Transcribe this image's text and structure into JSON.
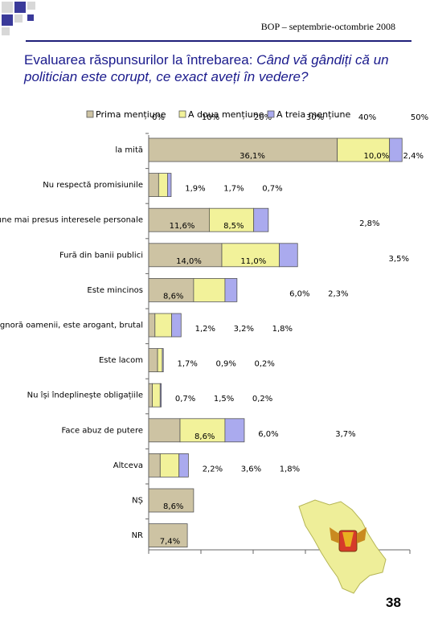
{
  "header": {
    "source": "BOP – septembrie-octombrie 2008"
  },
  "title": {
    "lead": "Evaluarea răspunsurilor la întrebarea:",
    "question": "Când vă gândiți că un politician este corupt, ce exact aveți în vedere?"
  },
  "page_number": "38",
  "colors": {
    "first": "#cdc3a3",
    "second": "#f2f29a",
    "third": "#aaaaee",
    "title": "#1a1a8c",
    "map": "#eeee99"
  },
  "chart_data": {
    "type": "bar",
    "orientation": "horizontal",
    "stacked": true,
    "xlim": [
      0,
      50
    ],
    "x_ticks": [
      "0%",
      "10%",
      "20%",
      "30%",
      "40%",
      "50%"
    ],
    "legend_position": "top",
    "categories": [
      "la mită",
      "Nu respectă promisiunile",
      "Pune mai presus interesele personale",
      "Fură din banii publici",
      "Este mincinos",
      "Ignoră oamenii, este arogant, brutal",
      "Este lacom",
      "Nu își îndeplinește obligațiile",
      "Face abuz de putere",
      "Altceva",
      "NȘ",
      "NR"
    ],
    "series": [
      {
        "name": "Prima mențiune",
        "values": [
          36.1,
          1.9,
          11.6,
          14.0,
          8.6,
          1.2,
          1.7,
          0.7,
          6.0,
          2.2,
          8.6,
          7.4
        ],
        "labels": [
          "36,1%",
          "1,9%",
          "11,6%",
          "14,0%",
          "8,6%",
          "1,2%",
          "1,7%",
          "0,7%",
          "6,0%",
          "2,2%",
          "8,6%",
          "7,4%"
        ]
      },
      {
        "name": "A doua mențiune",
        "values": [
          10.0,
          1.7,
          8.5,
          11.0,
          6.0,
          3.2,
          0.9,
          1.5,
          8.6,
          3.6,
          null,
          null
        ],
        "labels": [
          "10,0%",
          "1,7%",
          "8,5%",
          "11,0%",
          "6,0%",
          "3,2%",
          "0,9%",
          "1,5%",
          "8,6%",
          "3,6%",
          null,
          null
        ]
      },
      {
        "name": "A treia mențiune",
        "values": [
          2.4,
          0.7,
          2.8,
          3.5,
          2.3,
          1.8,
          0.2,
          0.2,
          3.7,
          1.8,
          null,
          null
        ],
        "labels": [
          "2,4%",
          "0,7%",
          "2,8%",
          "3,5%",
          "2,3%",
          "1,8%",
          "0,2%",
          "0,2%",
          "3,7%",
          "1,8%",
          null,
          null
        ]
      }
    ]
  }
}
